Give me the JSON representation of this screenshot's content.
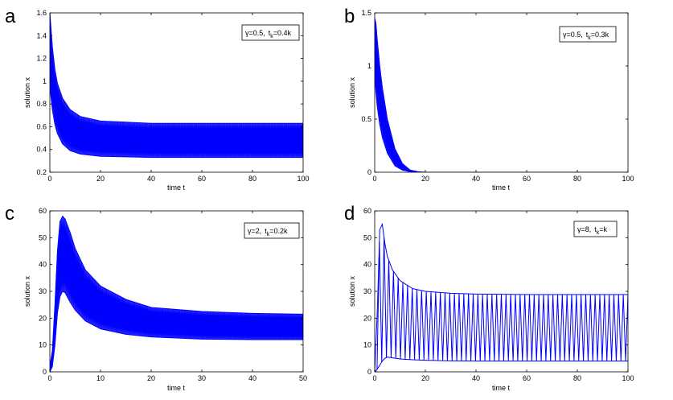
{
  "chart_data": [
    {
      "type": "line",
      "panel_label": "a",
      "legend": {
        "gamma": "γ=0.5,",
        "t": "t",
        "k_sub": "k",
        "value": "=0.4k"
      },
      "xlabel": "time t",
      "ylabel": "solution x",
      "xlim": [
        0,
        100
      ],
      "ylim": [
        0.2,
        1.6
      ],
      "xticks": [
        0,
        20,
        40,
        60,
        80,
        100
      ],
      "yticks": [
        0.2,
        0.4,
        0.6,
        0.8,
        1,
        1.2,
        1.4,
        1.6
      ],
      "series": [
        {
          "name": "upper envelope",
          "color": "#0000ff",
          "x": [
            0,
            1,
            2,
            3,
            5,
            8,
            12,
            20,
            30,
            40,
            60,
            80,
            100
          ],
          "y": [
            1.6,
            1.3,
            1.1,
            0.98,
            0.85,
            0.75,
            0.69,
            0.65,
            0.64,
            0.63,
            0.63,
            0.63,
            0.63
          ]
        },
        {
          "name": "lower envelope",
          "color": "#0000ff",
          "x": [
            0,
            1,
            2,
            3,
            5,
            8,
            12,
            20,
            30,
            40,
            60,
            80,
            100
          ],
          "y": [
            0.95,
            0.75,
            0.62,
            0.54,
            0.45,
            0.39,
            0.36,
            0.34,
            0.335,
            0.33,
            0.33,
            0.33,
            0.33
          ]
        }
      ]
    },
    {
      "type": "line",
      "panel_label": "b",
      "legend": {
        "gamma": "γ=0.5,",
        "t": "t",
        "k_sub": "k",
        "value": "=0.3k"
      },
      "xlabel": "time t",
      "ylabel": "solution x",
      "xlim": [
        0,
        100
      ],
      "ylim": [
        0,
        1.5
      ],
      "xticks": [
        0,
        20,
        40,
        60,
        80,
        100
      ],
      "yticks": [
        0,
        0.5,
        1,
        1.5
      ],
      "series": [
        {
          "name": "upper envelope",
          "color": "#0000ff",
          "x": [
            0,
            0.5,
            1,
            2,
            3,
            5,
            8,
            11,
            14,
            17,
            20,
            100
          ],
          "y": [
            1.45,
            1.4,
            1.25,
            1.0,
            0.8,
            0.5,
            0.22,
            0.08,
            0.02,
            0.005,
            0,
            0
          ]
        },
        {
          "name": "lower envelope",
          "color": "#0000ff",
          "x": [
            0,
            0.5,
            1,
            2,
            3,
            5,
            8,
            11,
            14,
            17,
            20,
            100
          ],
          "y": [
            0.9,
            0.75,
            0.62,
            0.45,
            0.33,
            0.18,
            0.06,
            0.02,
            0.005,
            0,
            0,
            0
          ]
        }
      ]
    },
    {
      "type": "line",
      "panel_label": "c",
      "legend": {
        "gamma": "γ=2,",
        "t": "t",
        "k_sub": "k",
        "value": "=0.2k"
      },
      "xlabel": "time t",
      "ylabel": "solution x",
      "xlim": [
        0,
        50
      ],
      "ylim": [
        0,
        60
      ],
      "xticks": [
        0,
        10,
        20,
        30,
        40,
        50
      ],
      "yticks": [
        0,
        10,
        20,
        30,
        40,
        50,
        60
      ],
      "series": [
        {
          "name": "upper envelope",
          "color": "#0000ff",
          "x": [
            0,
            0.5,
            1,
            1.5,
            2,
            2.5,
            3,
            4,
            5,
            7,
            10,
            15,
            20,
            30,
            40,
            50
          ],
          "y": [
            2,
            8,
            25,
            45,
            56,
            58,
            57,
            52,
            46,
            38,
            32,
            27,
            24,
            22.5,
            21.8,
            21.5
          ]
        },
        {
          "name": "lower envelope",
          "color": "#0000ff",
          "x": [
            0,
            0.5,
            1,
            1.5,
            2,
            2.5,
            3,
            4,
            5,
            7,
            10,
            15,
            20,
            30,
            40,
            50
          ],
          "y": [
            0,
            2,
            10,
            22,
            28,
            30,
            29.5,
            26,
            23,
            19,
            16,
            14,
            13,
            12.2,
            12,
            12
          ]
        }
      ]
    },
    {
      "type": "line",
      "panel_label": "d",
      "legend": {
        "gamma": "γ=8,",
        "t": "t",
        "k_sub": "k",
        "value": "=k"
      },
      "xlabel": "time t",
      "ylabel": "solution x",
      "xlim": [
        0,
        100
      ],
      "ylim": [
        0,
        60
      ],
      "xticks": [
        0,
        20,
        40,
        60,
        80,
        100
      ],
      "yticks": [
        0,
        10,
        20,
        30,
        40,
        50,
        60
      ],
      "series": [
        {
          "name": "oscillation peaks",
          "color": "#0000ff",
          "x": [
            0,
            1,
            2,
            3,
            4,
            5,
            7,
            10,
            15,
            20,
            30,
            40,
            60,
            80,
            100
          ],
          "y": [
            0,
            22,
            53,
            55,
            48,
            43,
            38,
            34,
            31,
            30,
            29.3,
            29,
            28.8,
            28.8,
            28.8
          ]
        },
        {
          "name": "oscillation troughs",
          "color": "#0000ff",
          "x": [
            0,
            1,
            2,
            3,
            4,
            5,
            7,
            10,
            15,
            20,
            30,
            40,
            60,
            80,
            100
          ],
          "y": [
            0,
            1,
            2.5,
            4,
            5,
            5.5,
            5.2,
            4.8,
            4.5,
            4.3,
            4.1,
            4,
            4,
            4,
            4
          ]
        }
      ]
    }
  ]
}
